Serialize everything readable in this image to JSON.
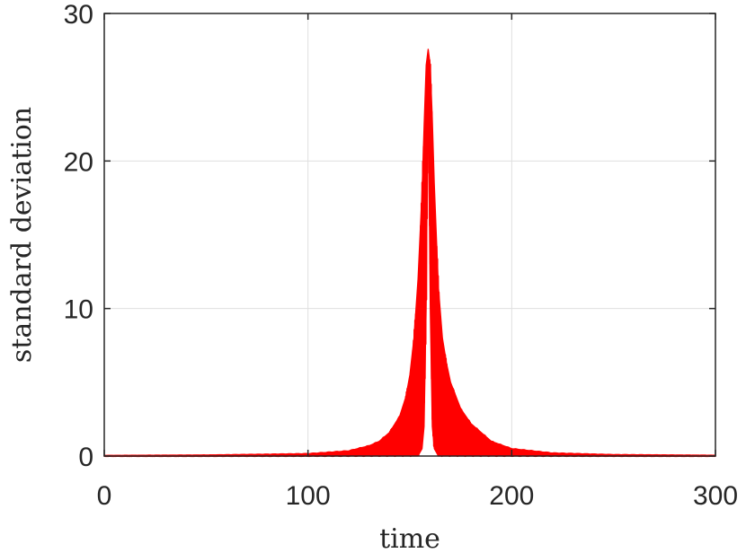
{
  "chart_data": {
    "type": "line",
    "title": "",
    "xlabel": "time",
    "ylabel": "standard deviation",
    "xlim": [
      0,
      300
    ],
    "ylim": [
      0,
      30
    ],
    "xticks": [
      0,
      100,
      200,
      300
    ],
    "yticks": [
      0,
      10,
      20,
      30
    ],
    "xtick_labels": [
      "0",
      "100",
      "200",
      "300"
    ],
    "ytick_labels": [
      "0",
      "10",
      "20",
      "30"
    ],
    "grid": true,
    "legend": "none",
    "series": [
      {
        "color": "#ff0000",
        "style": "rapidly oscillating band between lower and upper envelope",
        "x": [
          0,
          50,
          100,
          120,
          130,
          135,
          140,
          145,
          148,
          150,
          152,
          154,
          156,
          157,
          158,
          159,
          160,
          161,
          162,
          164,
          166,
          168,
          170,
          175,
          180,
          190,
          200,
          220,
          250,
          300
        ],
        "upper": [
          0.02,
          0.05,
          0.15,
          0.35,
          0.7,
          1.0,
          1.6,
          2.7,
          4.0,
          5.5,
          8.0,
          12.0,
          18.0,
          22.5,
          26.5,
          27.6,
          26.5,
          23.0,
          18.5,
          11.5,
          8.0,
          6.3,
          5.0,
          3.2,
          2.2,
          1.0,
          0.5,
          0.2,
          0.08,
          0.03
        ],
        "lower": [
          0.0,
          0.0,
          0.0,
          0.0,
          0.0,
          0.0,
          0.0,
          0.0,
          0.0,
          0.0,
          0.0,
          0.0,
          0.5,
          2.0,
          10.0,
          25.0,
          10.0,
          2.0,
          0.5,
          0.0,
          0.0,
          0.0,
          0.0,
          0.0,
          0.0,
          0.0,
          0.0,
          0.0,
          0.0,
          0.0
        ]
      }
    ]
  }
}
